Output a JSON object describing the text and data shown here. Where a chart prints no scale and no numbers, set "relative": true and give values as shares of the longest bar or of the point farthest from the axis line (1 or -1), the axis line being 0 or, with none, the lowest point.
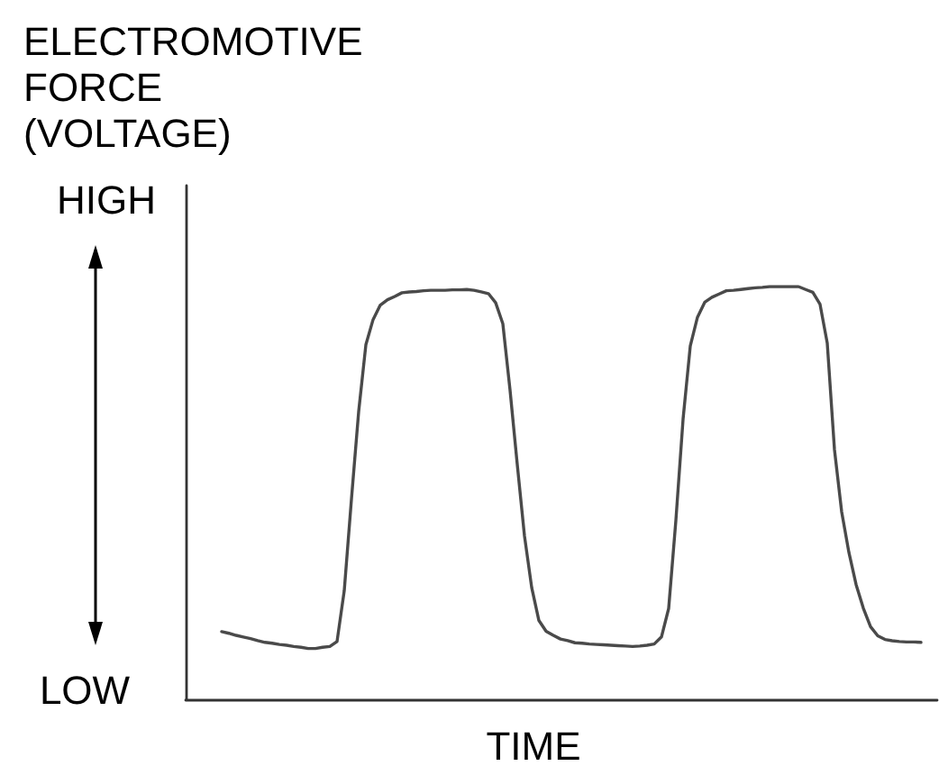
{
  "chart_data": {
    "type": "line",
    "xlabel": "TIME",
    "ylabel": "ELECTROMOTIVE FORCE (VOLTAGE)",
    "annotations": [
      "HIGH",
      "LOW"
    ],
    "relative": true,
    "line_style": "solid",
    "categories": [
      null,
      null,
      null,
      null,
      null,
      null,
      null,
      null,
      null,
      null,
      null,
      null,
      null,
      null,
      null,
      null,
      null,
      null,
      null,
      null,
      null,
      null,
      null,
      null,
      null,
      null,
      null,
      null,
      null,
      null,
      null,
      null,
      null,
      null,
      null,
      null,
      null,
      null,
      null,
      null,
      null,
      null,
      null,
      null,
      null,
      null,
      null,
      null,
      null,
      null,
      null,
      null,
      null,
      null,
      null,
      null,
      null,
      null,
      null,
      null,
      null,
      null,
      null,
      null,
      null,
      null,
      null,
      null,
      null,
      null,
      null,
      null,
      null,
      null,
      null,
      null,
      null,
      null,
      null,
      null,
      null,
      null,
      null,
      null,
      null,
      null,
      null,
      null,
      null,
      null,
      null,
      null,
      null,
      null,
      null,
      null,
      null,
      null
    ],
    "series": [
      {
        "color": "#4a4a4a",
        "values": [
          0.164,
          0.16,
          0.155,
          0.151,
          0.147,
          0.142,
          0.138,
          0.136,
          0.133,
          0.131,
          0.128,
          0.126,
          0.123,
          0.123,
          0.126,
          0.128,
          0.14,
          0.263,
          0.485,
          0.697,
          0.859,
          0.92,
          0.955,
          0.968,
          0.976,
          0.985,
          0.987,
          0.988,
          0.99,
          0.991,
          0.991,
          0.991,
          0.992,
          0.992,
          0.993,
          0.991,
          0.987,
          0.983,
          0.961,
          0.91,
          0.749,
          0.569,
          0.396,
          0.271,
          0.191,
          0.165,
          0.155,
          0.146,
          0.142,
          0.137,
          0.136,
          0.134,
          0.133,
          0.132,
          0.131,
          0.13,
          0.129,
          0.128,
          0.129,
          0.131,
          0.134,
          0.151,
          0.22,
          0.433,
          0.679,
          0.856,
          0.926,
          0.962,
          0.974,
          0.982,
          0.99,
          0.991,
          0.993,
          0.995,
          0.997,
          0.998,
          1,
          1,
          1,
          1,
          1,
          0.993,
          0.986,
          0.957,
          0.863,
          0.605,
          0.454,
          0.356,
          0.278,
          0.221,
          0.176,
          0.154,
          0.145,
          0.142,
          0.14,
          0.139,
          0.139,
          0.138
        ]
      }
    ]
  }
}
